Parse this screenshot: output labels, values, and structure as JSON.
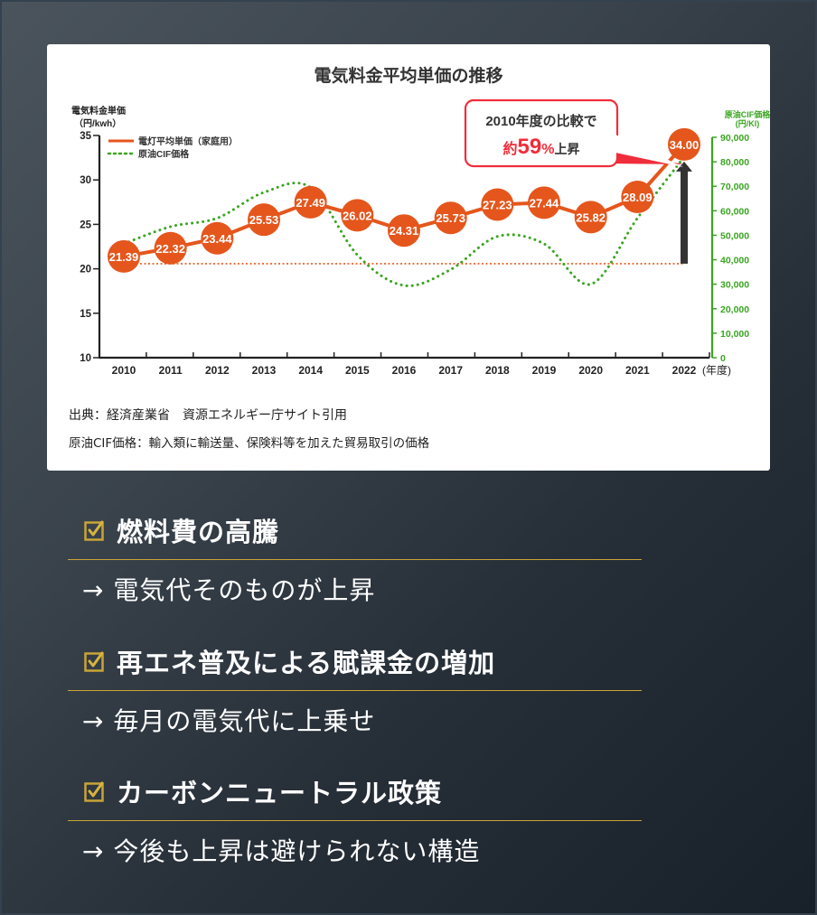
{
  "chart_data": {
    "type": "line",
    "title": "電気料金平均単価の推移",
    "xlabel": "(年度)",
    "ylabel": "電気料金単価（円/kwh）",
    "y2label": "原油CIF価格（円/Kl）",
    "categories": [
      "2010",
      "2011",
      "2012",
      "2013",
      "2014",
      "2015",
      "2016",
      "2017",
      "2018",
      "2019",
      "2020",
      "2021",
      "2022"
    ],
    "series": [
      {
        "name": "電灯平均単価（家庭用）",
        "axis": "left",
        "color": "#e5561c",
        "style": "solid-with-markers",
        "values": [
          21.39,
          22.32,
          23.44,
          25.53,
          27.49,
          26.02,
          24.31,
          25.73,
          27.23,
          27.44,
          25.82,
          28.09,
          34.0
        ]
      },
      {
        "name": "原油CIF価格",
        "axis": "right",
        "color": "#3aa520",
        "style": "dotted",
        "values": [
          46500,
          53500,
          57000,
          67500,
          69500,
          42000,
          29500,
          36000,
          49500,
          46500,
          30000,
          57000,
          82000
        ]
      }
    ],
    "ylim": [
      10,
      35
    ],
    "y_ticks": [
      "10",
      "15",
      "20",
      "25",
      "30",
      "35"
    ],
    "y2lim": [
      0,
      90000
    ],
    "y2_ticks": [
      "0",
      "10,000",
      "20,000",
      "30,000",
      "40,000",
      "50,000",
      "60,000",
      "70,000",
      "80,000",
      "90,000"
    ],
    "reference_line": {
      "value": 21.39,
      "style": "dotted",
      "color": "#e5561c"
    },
    "annotation": {
      "line1": "2010年度の比較で",
      "prefix": "約",
      "pct": "59%",
      "suffix": "上昇"
    },
    "legend_position": "top-left",
    "grid": false
  },
  "chart": {
    "title": "電気料金平均単価の推移",
    "y_label_1": "電気料金単価",
    "y_label_2": "（円/kwh）",
    "y2_label_1": "原油CIF価格",
    "y2_label_2": "(円/Kl)",
    "x_unit": "(年度)",
    "legend_1": "電灯平均単価（家庭用）",
    "legend_2": "原油CIF価格",
    "callout_line1": "2010年度の比較で",
    "callout_prefix": "約",
    "callout_pct": "59%",
    "callout_suffix": "上昇"
  },
  "source": {
    "line1": "出典：経済産業省　資源エネルギー庁サイト引用",
    "line2": "原油CIF価格：輸入類に輸送量、保険料等を加えた貿易取引の価格"
  },
  "points": [
    {
      "title": "燃料費の高騰",
      "sub": "→ 電気代そのものが上昇"
    },
    {
      "title": "再エネ普及による賦課金の増加",
      "sub": "→ 毎月の電気代に上乗せ"
    },
    {
      "title": "カーボンニュートラル政策",
      "sub": "→ 今後も上昇は避けられない構造"
    }
  ],
  "colors": {
    "accent": "#e5561c",
    "crude": "#3aa520",
    "callout": "#f02d3a",
    "gold": "#c9a437"
  }
}
